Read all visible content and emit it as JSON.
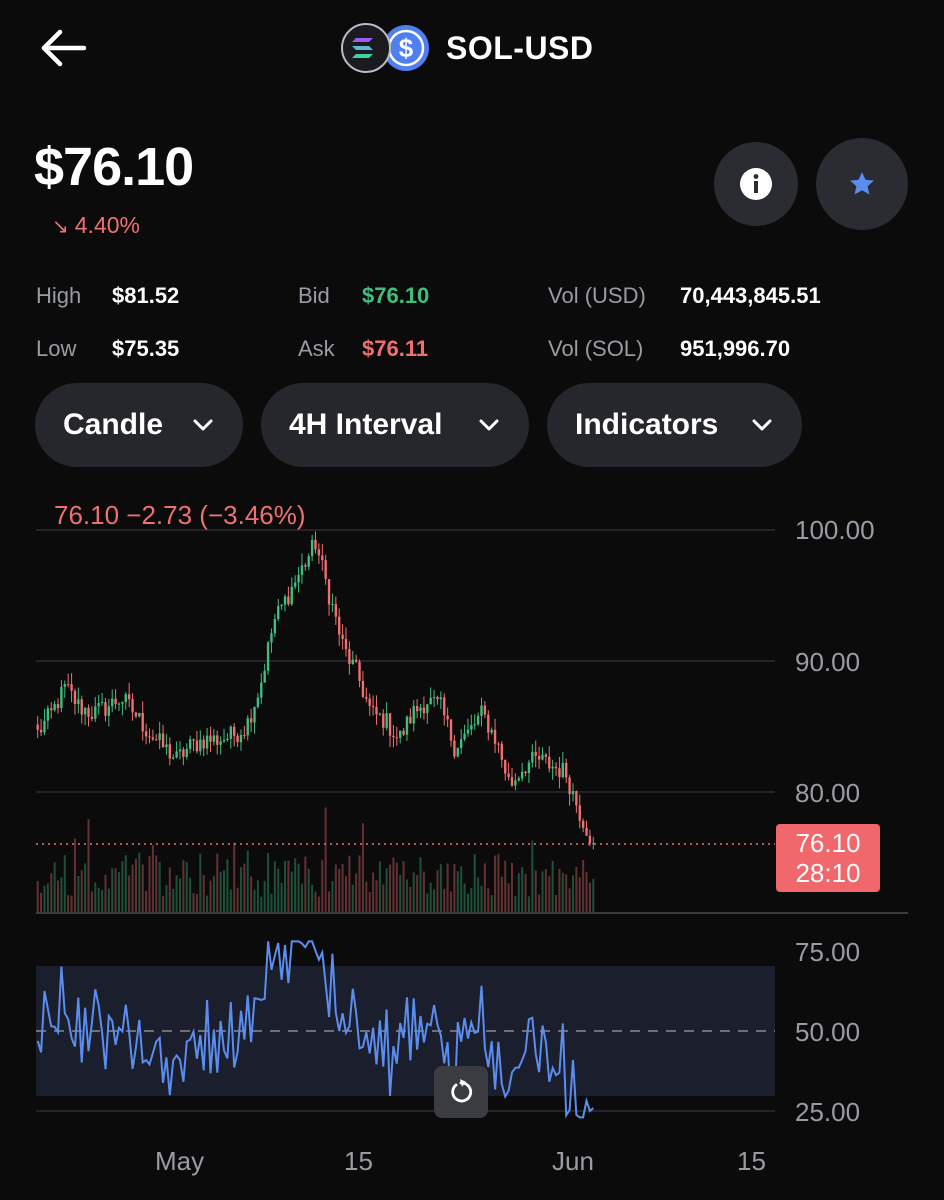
{
  "header": {
    "title": "SOL-USD",
    "back_icon": "arrow-left-icon",
    "logo_icons": [
      "solana-icon",
      "usd-coin-icon"
    ]
  },
  "price": {
    "current": "$76.10",
    "change_pct": "4.40%",
    "change_direction": "down",
    "change_color": "#f07070"
  },
  "actions": {
    "info_icon": "info-icon",
    "watchlist_icon": "star-icon",
    "star_color": "#5b8def"
  },
  "stats": {
    "high_label": "High",
    "high_value": "$81.52",
    "low_label": "Low",
    "low_value": "$75.35",
    "bid_label": "Bid",
    "bid_value": "$76.10",
    "bid_color": "#3fbf7f",
    "ask_label": "Ask",
    "ask_value": "$76.11",
    "ask_color": "#f07070",
    "vol_usd_label": "Vol (USD)",
    "vol_usd_value": "70,443,845.51",
    "vol_sol_label": "Vol (SOL)",
    "vol_sol_value": "951,996.70"
  },
  "controls": {
    "chart_type": "Candle",
    "interval": "4H Interval",
    "indicators": "Indicators"
  },
  "chart": {
    "ohlc_summary": "76.10  −2.73 (−3.46%)",
    "price_ticks": [
      "100.00",
      "90.00",
      "80.00"
    ],
    "current_price_tag": "76.10",
    "countdown": "28:10",
    "rsi_ticks": [
      "75.00",
      "50.00",
      "25.00"
    ],
    "x_labels": [
      "May",
      "15",
      "Jun",
      "15"
    ],
    "up_color": "#3fbf7f",
    "down_color": "#f07070",
    "rsi_color": "#5b8def",
    "reset_icon": "reset-zoom-icon"
  },
  "chart_data": {
    "type": "candlestick",
    "x_labels": [
      "May",
      "15",
      "Jun",
      "15"
    ],
    "ylim": [
      72,
      101
    ],
    "price_series_approx_close": [
      84.5,
      86,
      88,
      86.5,
      86,
      86.5,
      87.2,
      86,
      84.5,
      83.5,
      82.5,
      83.5,
      84,
      84,
      84.3,
      85,
      88,
      93,
      95,
      97,
      99,
      95,
      91,
      89,
      86,
      85.5,
      84,
      86,
      87,
      86.5,
      83.5,
      84.5,
      86,
      84,
      80.5,
      82,
      82.5,
      82,
      81.5,
      78.5,
      76.1
    ],
    "last_close": 76.1,
    "rsi": {
      "ylim": [
        20,
        80
      ],
      "levels": [
        25,
        50,
        75
      ]
    }
  }
}
